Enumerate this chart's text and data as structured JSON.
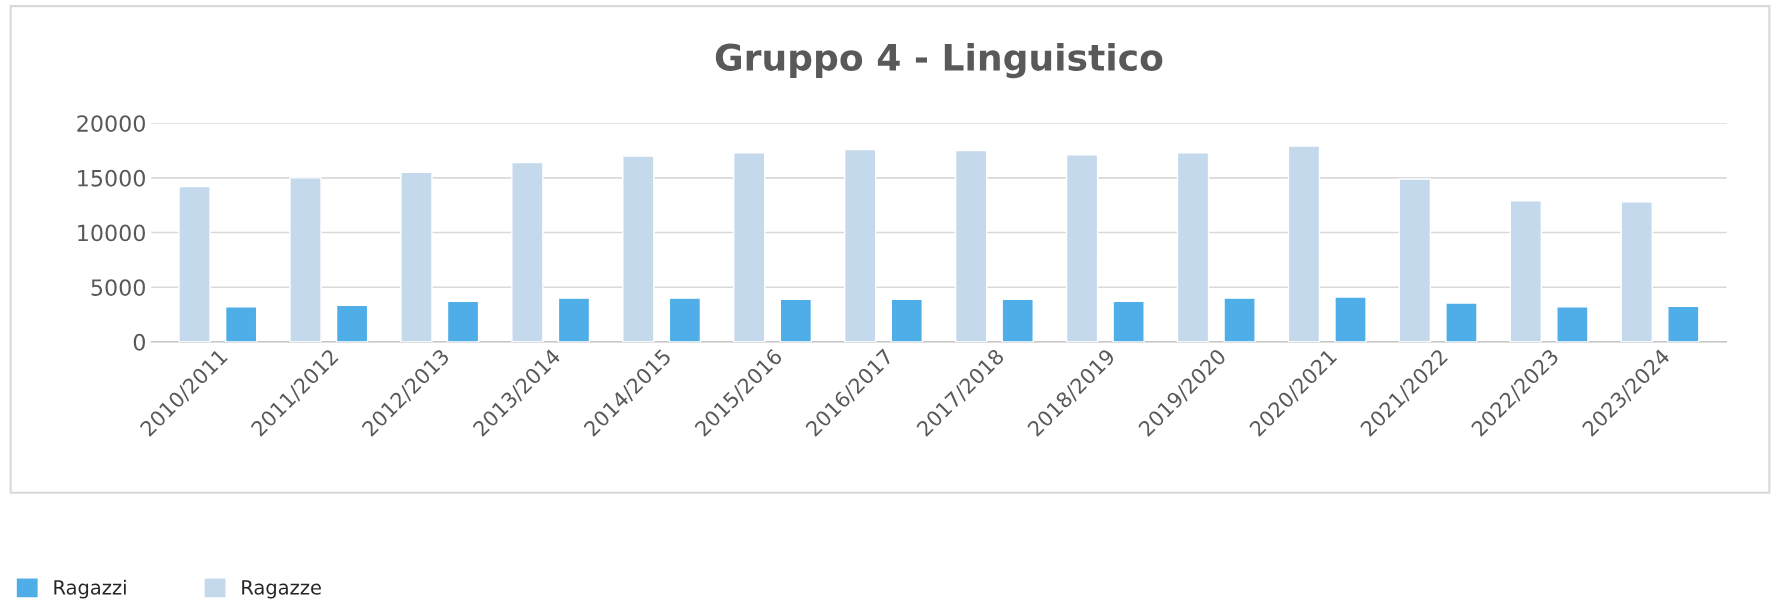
{
  "chart_data": {
    "type": "bar",
    "title": "Gruppo 4 - Linguistico",
    "categories": [
      "2010/2011",
      "2011/2012",
      "2012/2013",
      "2013/2014",
      "2014/2015",
      "2015/2016",
      "2016/2017",
      "2017/2018",
      "2018/2019",
      "2019/2020",
      "2020/2021",
      "2021/2022",
      "2022/2023",
      "2023/2024"
    ],
    "series": [
      {
        "name": "Ragazze",
        "color": "#c5d9ed",
        "values": [
          14200,
          15000,
          15500,
          16400,
          17000,
          17300,
          17600,
          17500,
          17100,
          17300,
          17900,
          14900,
          12900,
          12800
        ]
      },
      {
        "name": "Ragazzi",
        "color": "#4faee8",
        "values": [
          3200,
          3350,
          3700,
          4000,
          4000,
          3900,
          3900,
          3900,
          3700,
          4000,
          4100,
          3550,
          3200,
          3250
        ]
      }
    ],
    "ylim": [
      0,
      20000
    ],
    "yticks": [
      0,
      5000,
      10000,
      15000,
      20000
    ],
    "grid": "y",
    "legend": "bottom left"
  }
}
